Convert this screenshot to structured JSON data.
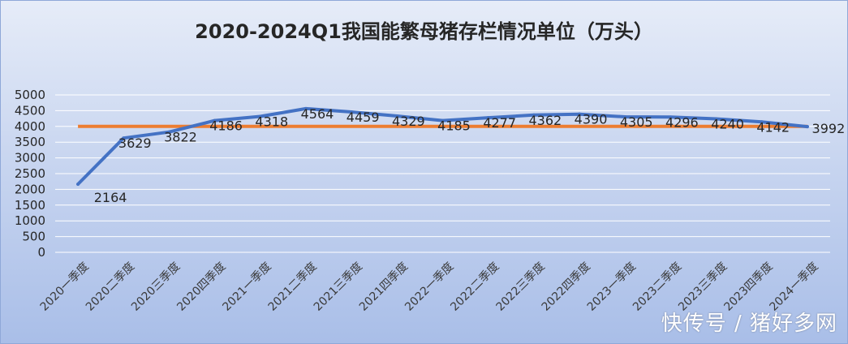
{
  "chart_data": {
    "type": "line",
    "title": "2020-2024Q1我国能繁母猪存栏情况单位（万头）",
    "xlabel": "",
    "ylabel": "",
    "categories": [
      "2020一季度",
      "2020二季度",
      "2020三季度",
      "2020四季度",
      "2021一季度",
      "2021二季度",
      "2021三季度",
      "2021四季度",
      "2022一季度",
      "2022二季度",
      "2022三季度",
      "2022四季度",
      "2023一季度",
      "2023二季度",
      "2023三季度",
      "2023四季度",
      "2024一季度"
    ],
    "series": [
      {
        "values": [
          2164,
          3629,
          3822,
          4186,
          4318,
          4564,
          4459,
          4329,
          4185,
          4277,
          4362,
          4390,
          4305,
          4296,
          4240,
          4142,
          3992
        ],
        "color": "#4472c4"
      }
    ],
    "reference_line": {
      "value": 4000,
      "color": "#ed7d31"
    },
    "ylim": [
      0,
      5000
    ],
    "yticks": [
      0,
      500,
      1000,
      1500,
      2000,
      2500,
      3000,
      3500,
      4000,
      4500,
      5000
    ],
    "grid": true
  },
  "watermark": "快传号 / 猪好多网"
}
